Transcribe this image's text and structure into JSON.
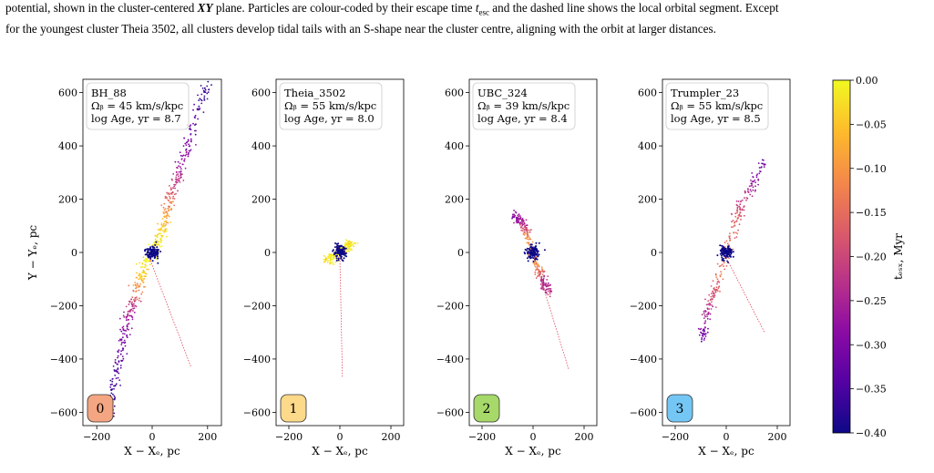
{
  "caption": {
    "line1_pre": "potential, shown in the cluster-centered ",
    "line1_xy": "XY",
    "line1_mid": " plane. Particles are colour-coded by their escape time ",
    "line1_t": "t",
    "line1_sub": "esc",
    "line1_post": " and the dashed line shows the local orbital segment. Except",
    "line2": "for the youngest cluster Theia 3502, all clusters develop tidal tails with an S-shape near the cluster centre, aligning with the orbit at larger distances."
  },
  "chart_data": {
    "type": "scatter",
    "shared": {
      "xlabel": "X − Xₑ, pc",
      "ylabel": "Y − Yₑ, pc",
      "xlim": [
        -250,
        250
      ],
      "ylim": [
        -650,
        650
      ],
      "xticks": [
        -200,
        0,
        200
      ],
      "xtick_labels": [
        "−200",
        "0",
        "200"
      ],
      "yticks": [
        -600,
        -400,
        -200,
        0,
        200,
        400,
        600
      ],
      "ytick_labels": [
        "−600",
        "−400",
        "−200",
        "0",
        "200",
        "400",
        "600"
      ],
      "colorbar": {
        "label": "tₑₛₓ, Myr",
        "range": [
          -0.4,
          0.0
        ],
        "ticks": [
          0.0,
          -0.05,
          -0.1,
          -0.15,
          -0.2,
          -0.25,
          -0.3,
          -0.35,
          -0.4
        ],
        "tick_labels": [
          "0.00",
          "−0.05",
          "−0.10",
          "−0.15",
          "−0.20",
          "−0.25",
          "−0.30",
          "−0.35",
          "−0.40"
        ],
        "colormap": "plasma"
      }
    },
    "panels": [
      {
        "name": "BH_88",
        "omega_line": "Ωᵦ = 45 km/s/kpc",
        "age_line": "log Age, yr = 8.7",
        "badge": "0",
        "badge_color": "#f4a582",
        "tail": [
          {
            "x": -160,
            "y": -610,
            "t": -0.38
          },
          {
            "x": -130,
            "y": -450,
            "t": -0.34
          },
          {
            "x": -100,
            "y": -300,
            "t": -0.3
          },
          {
            "x": -70,
            "y": -200,
            "t": -0.22
          },
          {
            "x": -40,
            "y": -100,
            "t": -0.05
          },
          {
            "x": -15,
            "y": -20,
            "t": -0.01
          },
          {
            "x": 15,
            "y": 20,
            "t": -0.01
          },
          {
            "x": 40,
            "y": 100,
            "t": -0.05
          },
          {
            "x": 65,
            "y": 200,
            "t": -0.15
          },
          {
            "x": 95,
            "y": 300,
            "t": -0.25
          },
          {
            "x": 140,
            "y": 450,
            "t": -0.32
          },
          {
            "x": 200,
            "y": 630,
            "t": -0.38
          }
        ],
        "orbit": [
          [
            -10,
            -20
          ],
          [
            140,
            -430
          ]
        ]
      },
      {
        "name": "Theia_3502",
        "omega_line": "Ωᵦ = 55 km/s/kpc",
        "age_line": "log Age, yr = 8.0",
        "badge": "1",
        "badge_color": "#fdd98a",
        "tail": [
          {
            "x": -50,
            "y": -30,
            "t": -0.02
          },
          {
            "x": -25,
            "y": -15,
            "t": -0.01
          },
          {
            "x": 25,
            "y": 15,
            "t": -0.01
          },
          {
            "x": 50,
            "y": 40,
            "t": -0.02
          }
        ],
        "orbit": [
          [
            0,
            -20
          ],
          [
            10,
            -470
          ]
        ]
      },
      {
        "name": "UBC_324",
        "omega_line": "Ωᵦ = 39 km/s/kpc",
        "age_line": "log Age, yr = 8.4",
        "badge": "2",
        "badge_color": "#a6d96a",
        "tail": [
          {
            "x": -80,
            "y": 140,
            "t": -0.28
          },
          {
            "x": -40,
            "y": 110,
            "t": -0.25
          },
          {
            "x": -20,
            "y": 60,
            "t": -0.1
          },
          {
            "x": 20,
            "y": -60,
            "t": -0.1
          },
          {
            "x": 40,
            "y": -110,
            "t": -0.25
          },
          {
            "x": 60,
            "y": -150,
            "t": -0.22
          }
        ],
        "orbit": [
          [
            5,
            -20
          ],
          [
            140,
            -440
          ]
        ]
      },
      {
        "name": "Trumpler_23",
        "omega_line": "Ωᵦ = 55 km/s/kpc",
        "age_line": "log Age, yr = 8.5",
        "badge": "3",
        "badge_color": "#74c6f4",
        "tail": [
          {
            "x": -100,
            "y": -330,
            "t": -0.33
          },
          {
            "x": -70,
            "y": -200,
            "t": -0.22
          },
          {
            "x": -30,
            "y": -100,
            "t": -0.15
          },
          {
            "x": 30,
            "y": 100,
            "t": -0.15
          },
          {
            "x": 70,
            "y": 200,
            "t": -0.22
          },
          {
            "x": 150,
            "y": 340,
            "t": -0.33
          }
        ],
        "orbit": [
          [
            0,
            -20
          ],
          [
            150,
            -300
          ]
        ]
      }
    ]
  }
}
